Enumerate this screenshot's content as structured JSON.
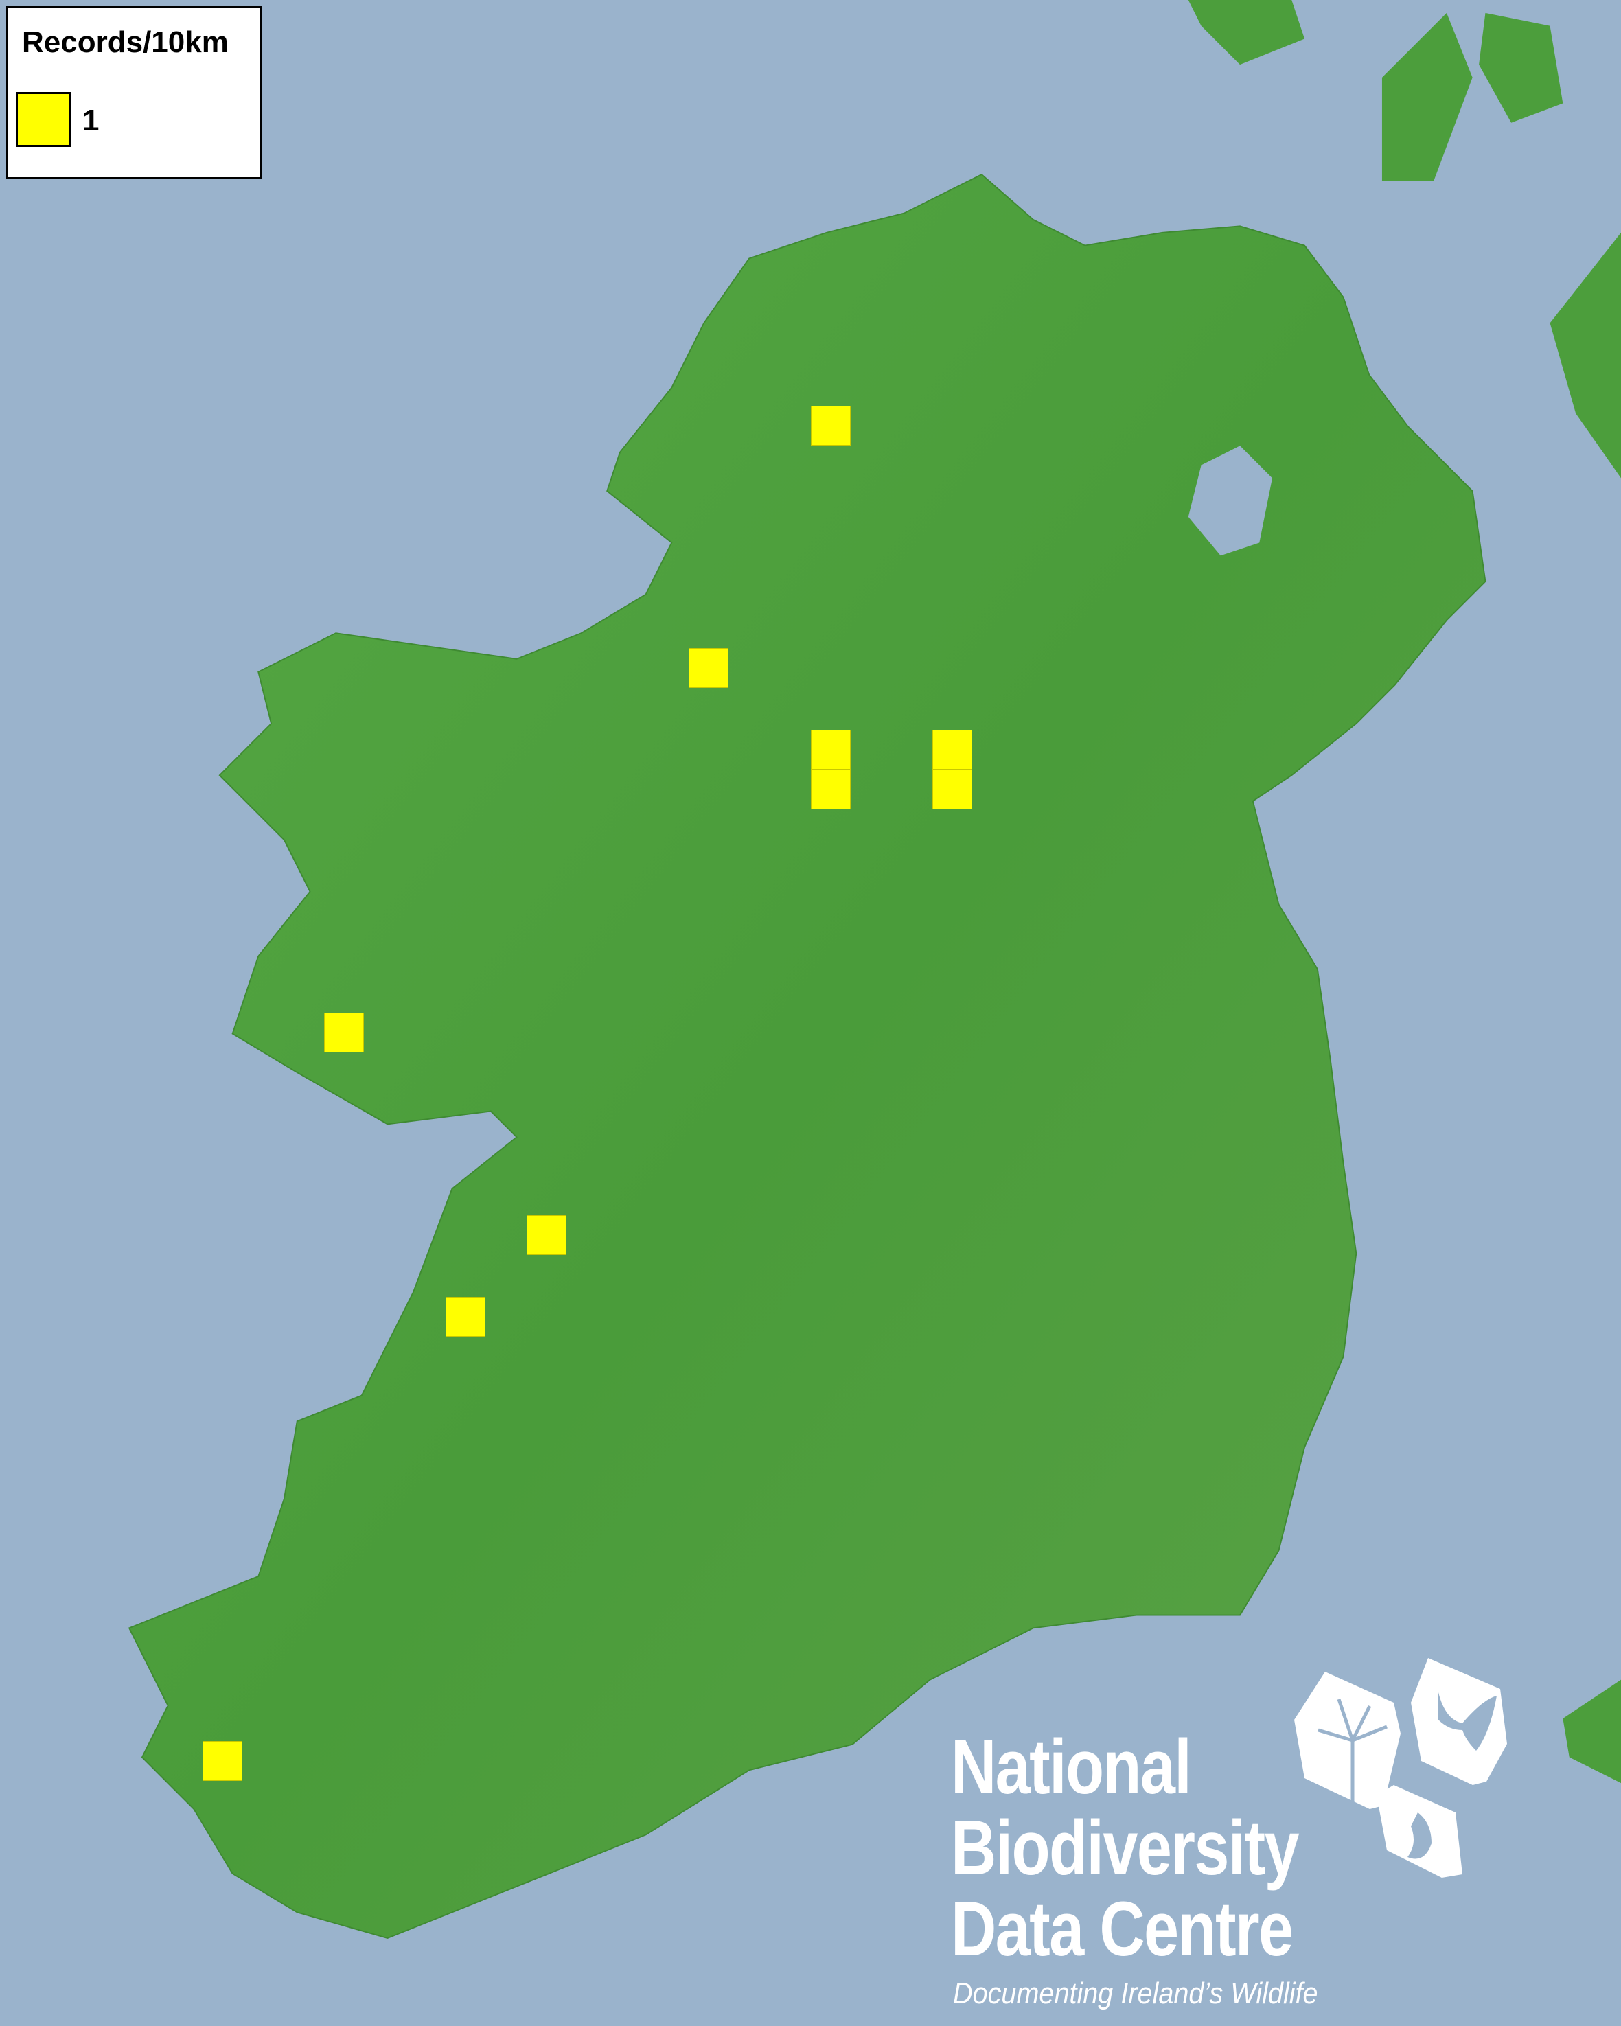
{
  "legend": {
    "title": "Records/10km",
    "items": [
      {
        "label": "1",
        "color": "#ffff00"
      }
    ]
  },
  "map": {
    "sea_color": "#9ab3cc",
    "land_color": "#4c9e3c",
    "record_cells": [
      {
        "records": 1
      },
      {
        "records": 1
      },
      {
        "records": 1
      },
      {
        "records": 1
      },
      {
        "records": 1
      },
      {
        "records": 1
      },
      {
        "records": 1
      },
      {
        "records": 1
      },
      {
        "records": 1
      },
      {
        "records": 1
      }
    ]
  },
  "logo": {
    "line1": "National",
    "line2": "Biodiversity",
    "line3": "Data Centre",
    "tagline": "Documenting Ireland’s Wildlife",
    "icons": [
      "plant-icon",
      "butterfly-icon",
      "seahorse-icon"
    ]
  }
}
